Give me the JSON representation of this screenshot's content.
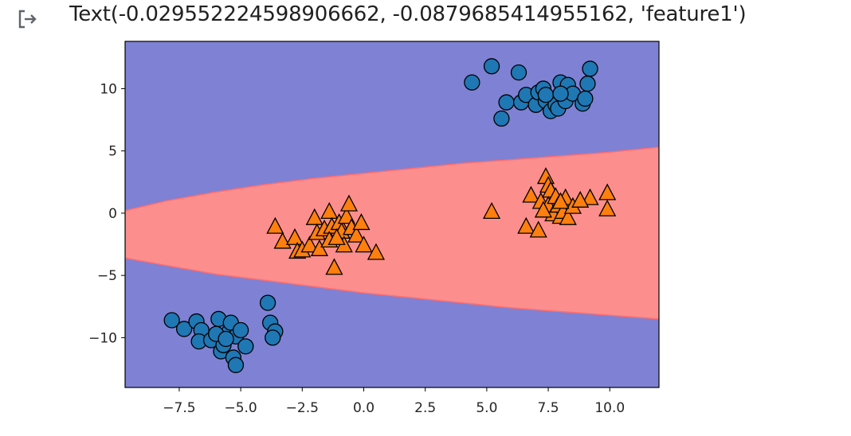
{
  "output": {
    "icon": "output-arrow-icon",
    "text": "Text(-0.029552224598906662, -0.0879685414955162, 'feature1')"
  },
  "chart_data": {
    "type": "scatter",
    "title": "",
    "xlabel": "",
    "ylabel": "",
    "xlim": [
      -9.7,
      12.0
    ],
    "ylim": [
      -14.0,
      13.8
    ],
    "xticks": [
      -7.5,
      -5.0,
      -2.5,
      0.0,
      2.5,
      5.0,
      7.5,
      10.0
    ],
    "xtick_labels": [
      "−7.5",
      "−5.0",
      "−2.5",
      "0.0",
      "2.5",
      "5.0",
      "7.5",
      "10.0"
    ],
    "yticks": [
      10,
      5,
      0,
      -5,
      -10
    ],
    "ytick_labels": [
      "10",
      "5",
      "0",
      "−5",
      "−10"
    ],
    "grid": false,
    "legend": "none",
    "colors": {
      "region_outer": "#7f81d4",
      "region_inner": "#fd8e8e",
      "boundary": "#ff6e6e",
      "class0_marker": "#1f77b4",
      "class1_marker": "#ff7f0e",
      "marker_edge": "#000000"
    },
    "decision_region": {
      "description": "parabolic band",
      "upper_boundary": [
        [
          -9.7,
          0.2
        ],
        [
          -8.0,
          1.0
        ],
        [
          -6.0,
          1.7
        ],
        [
          -4.0,
          2.3
        ],
        [
          -2.0,
          2.8
        ],
        [
          0.0,
          3.2
        ],
        [
          2.0,
          3.6
        ],
        [
          4.0,
          4.0
        ],
        [
          6.0,
          4.3
        ],
        [
          8.0,
          4.6
        ],
        [
          10.0,
          4.9
        ],
        [
          12.0,
          5.3
        ]
      ],
      "lower_boundary": [
        [
          -9.7,
          -3.6
        ],
        [
          -8.0,
          -4.2
        ],
        [
          -6.0,
          -4.9
        ],
        [
          -4.0,
          -5.4
        ],
        [
          -2.0,
          -5.9
        ],
        [
          0.0,
          -6.4
        ],
        [
          2.0,
          -6.8
        ],
        [
          4.0,
          -7.2
        ],
        [
          6.0,
          -7.6
        ],
        [
          8.0,
          -7.9
        ],
        [
          10.0,
          -8.2
        ],
        [
          12.0,
          -8.5
        ]
      ]
    },
    "series": [
      {
        "marker": "circle",
        "points": [
          [
            4.4,
            10.5
          ],
          [
            5.2,
            11.8
          ],
          [
            6.3,
            11.3
          ],
          [
            5.6,
            7.6
          ],
          [
            5.8,
            8.9
          ],
          [
            6.4,
            8.9
          ],
          [
            6.6,
            9.5
          ],
          [
            7.0,
            8.7
          ],
          [
            7.1,
            9.7
          ],
          [
            7.3,
            10.0
          ],
          [
            7.4,
            9.0
          ],
          [
            7.6,
            8.2
          ],
          [
            7.8,
            8.7
          ],
          [
            7.9,
            8.4
          ],
          [
            8.0,
            10.5
          ],
          [
            8.3,
            10.3
          ],
          [
            8.2,
            9.0
          ],
          [
            8.5,
            9.6
          ],
          [
            8.9,
            8.8
          ],
          [
            9.0,
            9.2
          ],
          [
            9.1,
            10.4
          ],
          [
            9.2,
            11.6
          ],
          [
            7.4,
            9.5
          ],
          [
            8.0,
            9.6
          ],
          [
            -7.8,
            -8.6
          ],
          [
            -7.3,
            -9.3
          ],
          [
            -6.8,
            -8.7
          ],
          [
            -6.6,
            -9.4
          ],
          [
            -6.7,
            -10.3
          ],
          [
            -6.2,
            -10.2
          ],
          [
            -5.9,
            -8.5
          ],
          [
            -5.8,
            -11.1
          ],
          [
            -5.5,
            -9.6
          ],
          [
            -5.4,
            -8.8
          ],
          [
            -5.2,
            -9.9
          ],
          [
            -5.0,
            -9.4
          ],
          [
            -4.8,
            -10.7
          ],
          [
            -5.3,
            -11.6
          ],
          [
            -5.2,
            -12.2
          ],
          [
            -5.7,
            -10.6
          ],
          [
            -3.9,
            -7.2
          ],
          [
            -3.8,
            -8.8
          ],
          [
            -3.6,
            -9.5
          ],
          [
            -3.7,
            -10.0
          ],
          [
            -6.0,
            -9.7
          ],
          [
            -5.6,
            -10.1
          ]
        ]
      },
      {
        "marker": "triangle",
        "points": [
          [
            -3.6,
            -1.1
          ],
          [
            -3.3,
            -2.3
          ],
          [
            -2.8,
            -2.0
          ],
          [
            -2.7,
            -3.1
          ],
          [
            -2.5,
            -3.0
          ],
          [
            -2.2,
            -2.6
          ],
          [
            -2.0,
            -0.4
          ],
          [
            -1.9,
            -1.6
          ],
          [
            -1.8,
            -2.9
          ],
          [
            -1.6,
            -1.3
          ],
          [
            -1.4,
            0.1
          ],
          [
            -1.3,
            -1.1
          ],
          [
            -1.4,
            -2.2
          ],
          [
            -1.2,
            -4.4
          ],
          [
            -1.0,
            -0.8
          ],
          [
            -0.9,
            -1.5
          ],
          [
            -0.8,
            -2.6
          ],
          [
            -0.7,
            -0.3
          ],
          [
            -0.6,
            0.7
          ],
          [
            -0.5,
            -1.2
          ],
          [
            -0.3,
            -1.8
          ],
          [
            -0.1,
            -0.8
          ],
          [
            0.0,
            -2.6
          ],
          [
            0.5,
            -3.2
          ],
          [
            -1.1,
            -2.0
          ],
          [
            5.2,
            0.1
          ],
          [
            6.6,
            -1.1
          ],
          [
            6.8,
            1.4
          ],
          [
            7.1,
            -1.4
          ],
          [
            7.2,
            0.9
          ],
          [
            7.4,
            2.9
          ],
          [
            7.5,
            2.2
          ],
          [
            7.6,
            1.8
          ],
          [
            7.5,
            0.6
          ],
          [
            7.7,
            -0.1
          ],
          [
            7.8,
            1.3
          ],
          [
            7.9,
            0.6
          ],
          [
            8.0,
            -0.3
          ],
          [
            8.1,
            0.1
          ],
          [
            8.2,
            1.2
          ],
          [
            8.3,
            -0.4
          ],
          [
            8.5,
            0.5
          ],
          [
            9.2,
            1.2
          ],
          [
            9.9,
            0.3
          ],
          [
            9.9,
            1.6
          ],
          [
            7.3,
            0.2
          ],
          [
            8.0,
            0.9
          ],
          [
            8.8,
            1.0
          ]
        ]
      }
    ]
  }
}
